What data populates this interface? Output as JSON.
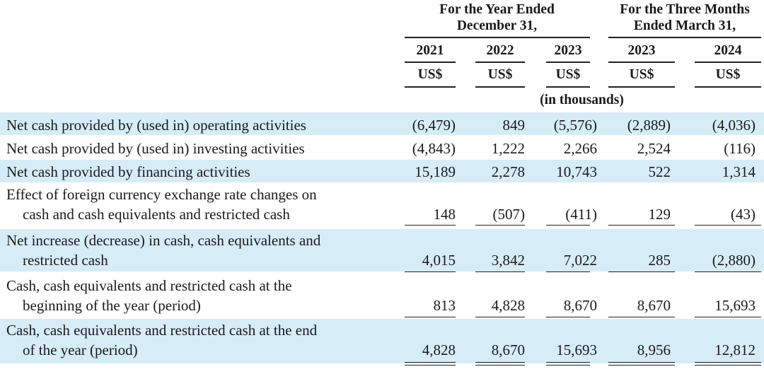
{
  "header": {
    "group1": "For the Year Ended December 31,",
    "group1_line1": "For the Year Ended",
    "group1_line2": "December 31,",
    "group2_line1": "For the Three Months",
    "group2_line2": "Ended March 31,",
    "years": [
      "2021",
      "2022",
      "2023",
      "2023",
      "2024"
    ],
    "currency": [
      "US$",
      "US$",
      "US$",
      "US$",
      "US$"
    ],
    "units": "(in thousands)"
  },
  "rows": [
    {
      "label1": "Net cash provided by (used in) operating activities",
      "label2": "",
      "values": [
        "(6,479)",
        "849",
        "(5,576)",
        "(2,889)",
        "(4,036)"
      ],
      "shaded": true
    },
    {
      "label1": "Net cash provided by (used in) investing activities",
      "label2": "",
      "values": [
        "(4,843)",
        "1,222",
        "2,266",
        "2,524",
        "(116)"
      ],
      "shaded": false
    },
    {
      "label1": "Net cash provided by financing activities",
      "label2": "",
      "values": [
        "15,189",
        "2,278",
        "10,743",
        "522",
        "1,314"
      ],
      "shaded": true
    },
    {
      "label1": "Effect of foreign currency exchange rate changes on",
      "label2": "cash and cash equivalents and restricted cash",
      "values": [
        "148",
        "(507)",
        "(411)",
        "129",
        "(43)"
      ],
      "shaded": false
    },
    {
      "label1": "Net increase (decrease) in cash, cash equivalents and",
      "label2": "restricted cash",
      "values": [
        "4,015",
        "3,842",
        "7,022",
        "285",
        "(2,880)"
      ],
      "shaded": true
    },
    {
      "label1": "Cash, cash equivalents and restricted cash at the",
      "label2": "beginning of the year (period)",
      "values": [
        "813",
        "4,828",
        "8,670",
        "8,670",
        "15,693"
      ],
      "shaded": false
    },
    {
      "label1": "Cash, cash equivalents and restricted cash at the end",
      "label2": "of the year (period)",
      "values": [
        "4,828",
        "8,670",
        "15,693",
        "8,956",
        "12,812"
      ],
      "shaded": true
    }
  ]
}
